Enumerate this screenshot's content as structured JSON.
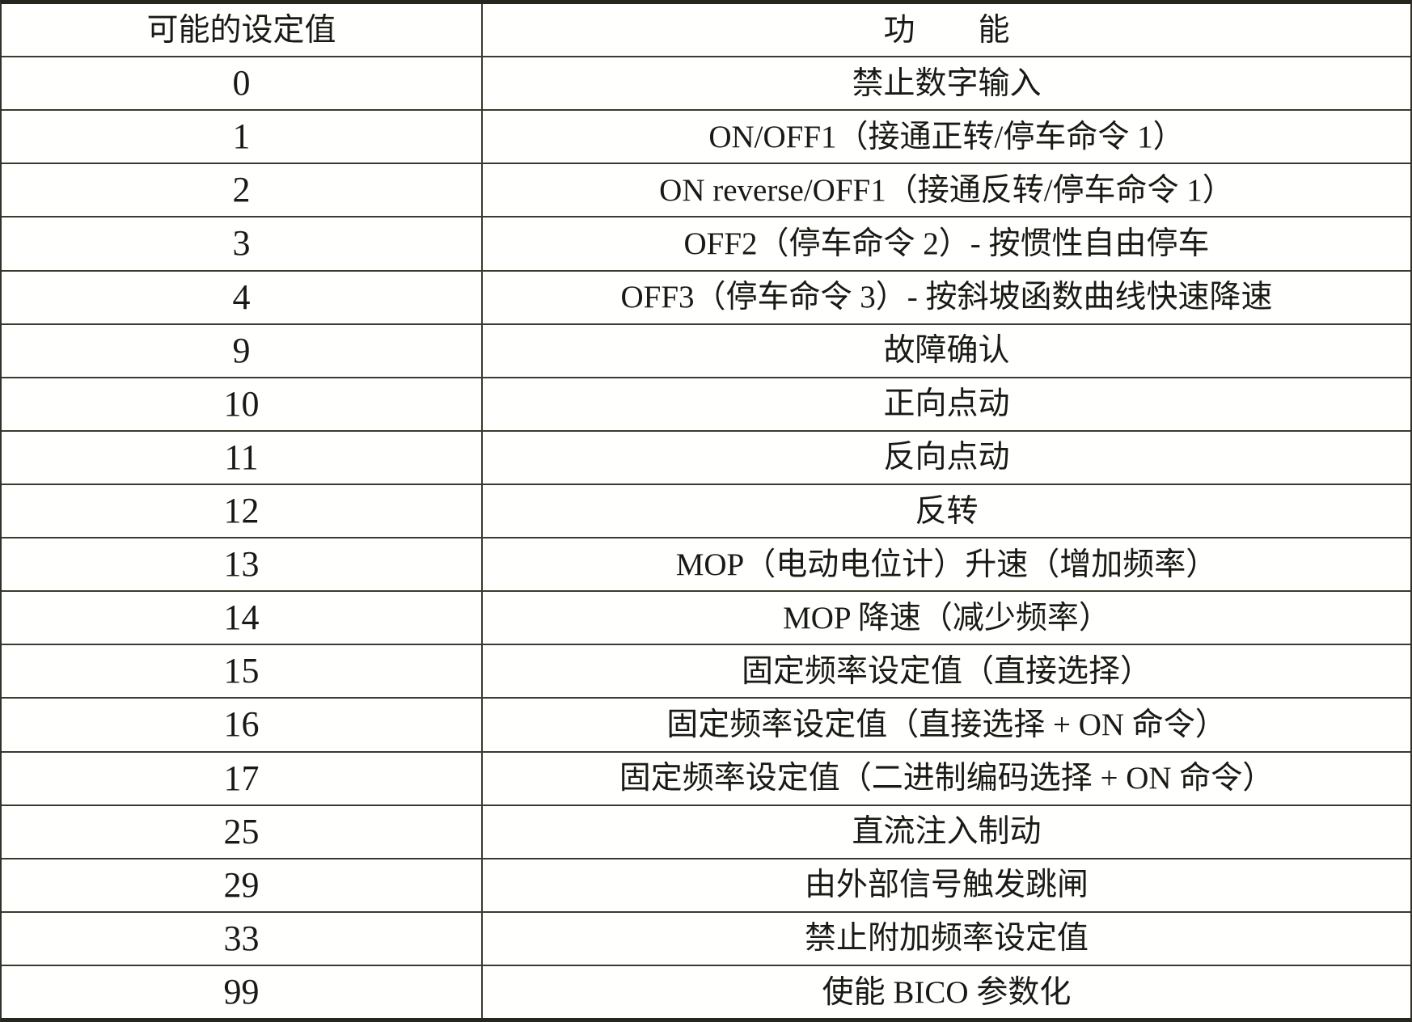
{
  "table": {
    "headers": {
      "value": "可能的设定值",
      "function": "功　　能"
    },
    "rows": [
      {
        "value": "0",
        "function": "禁止数字输入"
      },
      {
        "value": "1",
        "function": "ON/OFF1（接通正转/停车命令 1）"
      },
      {
        "value": "2",
        "function": "ON reverse/OFF1（接通反转/停车命令 1）"
      },
      {
        "value": "3",
        "function": "OFF2（停车命令 2）- 按惯性自由停车"
      },
      {
        "value": "4",
        "function": "OFF3（停车命令 3）- 按斜坡函数曲线快速降速"
      },
      {
        "value": "9",
        "function": "故障确认"
      },
      {
        "value": "10",
        "function": "正向点动"
      },
      {
        "value": "11",
        "function": "反向点动"
      },
      {
        "value": "12",
        "function": "反转"
      },
      {
        "value": "13",
        "function": "MOP（电动电位计）升速（增加频率）"
      },
      {
        "value": "14",
        "function": "MOP 降速（减少频率）"
      },
      {
        "value": "15",
        "function": "固定频率设定值（直接选择）"
      },
      {
        "value": "16",
        "function": "固定频率设定值（直接选择 + ON 命令）"
      },
      {
        "value": "17",
        "function": "固定频率设定值（二进制编码选择 + ON 命令）"
      },
      {
        "value": "25",
        "function": "直流注入制动"
      },
      {
        "value": "29",
        "function": "由外部信号触发跳闸"
      },
      {
        "value": "33",
        "function": "禁止附加频率设定值"
      },
      {
        "value": "99",
        "function": "使能 BICO 参数化"
      }
    ]
  }
}
